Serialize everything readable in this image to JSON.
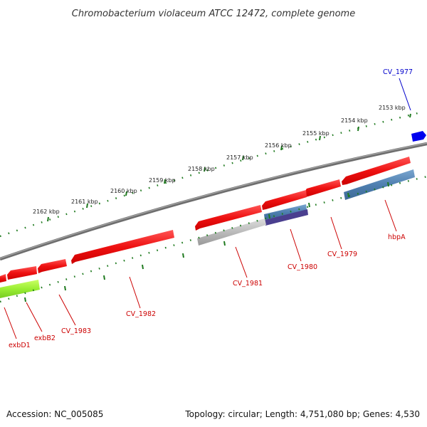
{
  "title": "Chromobacterium violaceum ATCC 12472, complete genome",
  "footer": {
    "accession": "Accession: NC_005085",
    "summary": "Topology: circular; Length: 4,751,080 bp; Genes: 4,530"
  },
  "colors": {
    "forward_gene": "#ee1111",
    "reverse_gene_label": "#cc0000",
    "blue_gene": "#0000ee",
    "backbone": "#7a7a7a",
    "ticks": "#1f7a1f",
    "steelblue_feature": "#4f7fb0",
    "lime_feature": "#99ee33"
  },
  "ruler": {
    "ticks": [
      {
        "label": "2153 kbp"
      },
      {
        "label": "2154 kbp"
      },
      {
        "label": "2155 kbp"
      },
      {
        "label": "2156 kbp"
      },
      {
        "label": "2157 kbp"
      },
      {
        "label": "2158 kbp"
      },
      {
        "label": "2159 kbp"
      },
      {
        "label": "2160 kbp"
      },
      {
        "label": "2161 kbp"
      },
      {
        "label": "2162 kbp"
      }
    ]
  },
  "gene_labels": [
    {
      "name": "CV_1977"
    },
    {
      "name": "hbpA"
    },
    {
      "name": "CV_1979"
    },
    {
      "name": "CV_1980"
    },
    {
      "name": "CV_1981"
    },
    {
      "name": "CV_1982"
    },
    {
      "name": "CV_1983"
    },
    {
      "name": "exbB2"
    },
    {
      "name": "exbD1"
    }
  ]
}
